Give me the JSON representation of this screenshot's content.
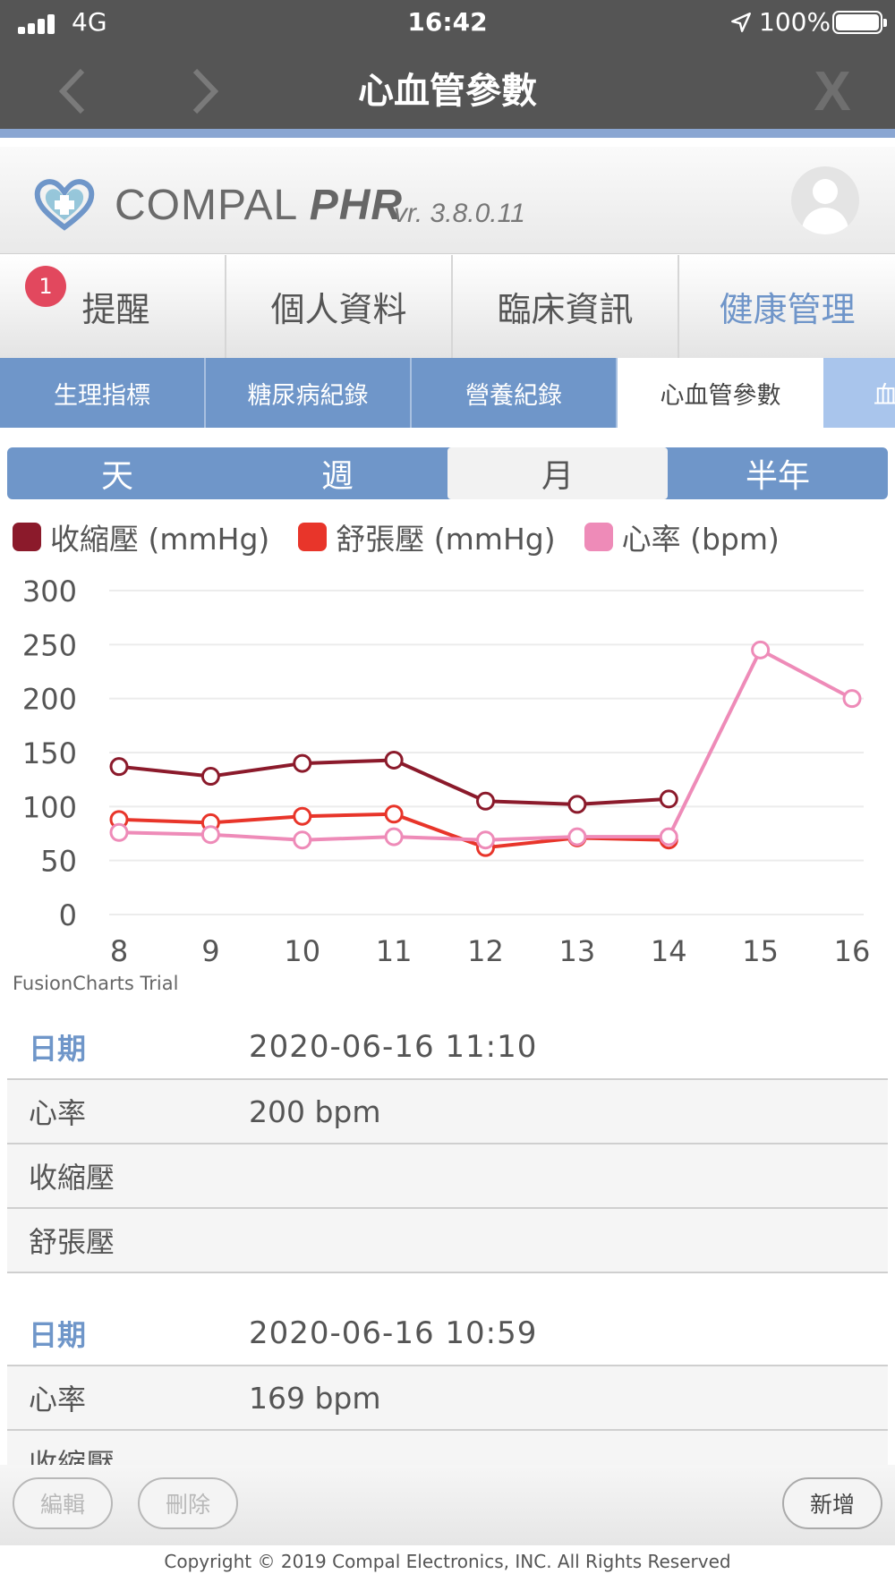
{
  "status_bar": {
    "carrier": "4G",
    "time": "16:42",
    "battery": "100%"
  },
  "nav": {
    "title": "心血管參數",
    "close_label": "X"
  },
  "brand": {
    "name_regular": "COMPAL ",
    "name_bold": "PHR",
    "version": "vr. 3.8.0.11"
  },
  "main_tabs": [
    {
      "label": "提醒",
      "badge": "1"
    },
    {
      "label": "個人資料"
    },
    {
      "label": "臨床資訊"
    },
    {
      "label": "健康管理"
    }
  ],
  "sub_tabs": [
    {
      "label": "生理指標"
    },
    {
      "label": "糖尿病紀錄"
    },
    {
      "label": "營養紀錄"
    },
    {
      "label": "心血管參數"
    },
    {
      "label": "血"
    }
  ],
  "period": [
    "天",
    "週",
    "月",
    "半年"
  ],
  "chart_data": {
    "type": "line",
    "x": [
      8,
      9,
      10,
      11,
      12,
      13,
      14,
      15,
      16
    ],
    "ylim": [
      0,
      300
    ],
    "yticks": [
      300,
      250,
      200,
      150,
      100,
      50,
      0
    ],
    "grid": true,
    "legend_position": "top-left",
    "series": [
      {
        "name": "收縮壓 (mmHg)",
        "color": "#8b1a2b",
        "values": [
          137,
          128,
          140,
          143,
          105,
          102,
          107,
          null,
          null
        ]
      },
      {
        "name": "舒張壓 (mmHg)",
        "color": "#e8352a",
        "values": [
          88,
          85,
          91,
          93,
          62,
          71,
          69,
          null,
          null
        ]
      },
      {
        "name": "心率 (bpm)",
        "color": "#ee8bb8",
        "values": [
          76,
          74,
          69,
          72,
          69,
          72,
          72,
          245,
          200
        ]
      }
    ],
    "watermark": "FusionCharts Trial"
  },
  "records": [
    {
      "date_label": "日期",
      "date": "2020-06-16 11:10",
      "fields": [
        {
          "label": "心率",
          "value": "200 bpm"
        },
        {
          "label": "收縮壓",
          "value": ""
        },
        {
          "label": "舒張壓",
          "value": ""
        }
      ]
    },
    {
      "date_label": "日期",
      "date": "2020-06-16 10:59",
      "fields": [
        {
          "label": "心率",
          "value": "169 bpm"
        },
        {
          "label": "收縮壓",
          "value": ""
        }
      ]
    }
  ],
  "buttons": {
    "edit": "編輯",
    "delete": "刪除",
    "add": "新增"
  },
  "footer": "Copyright © 2019 Compal Electronics, INC. All Rights Reserved",
  "colors": {
    "accent": "#6f96c9",
    "header_bg": "#555555",
    "badge": "#e2485e"
  }
}
